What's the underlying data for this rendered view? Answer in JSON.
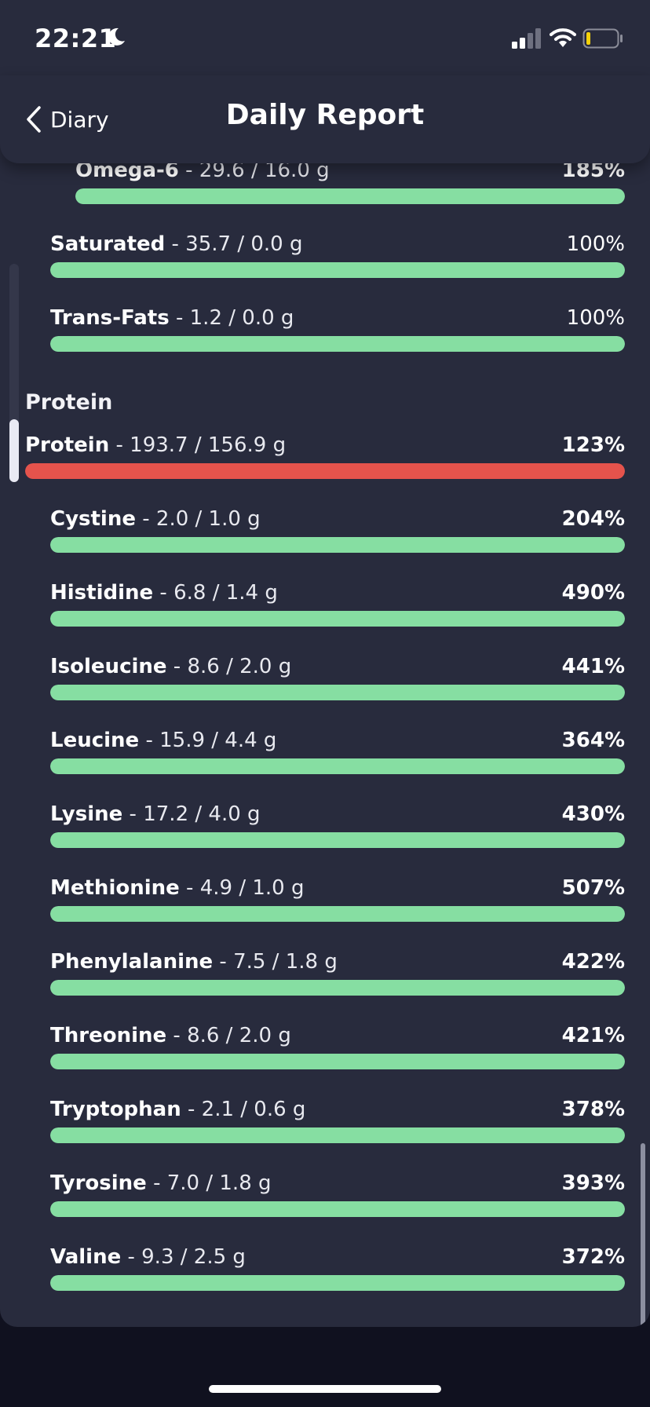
{
  "status_bar": {
    "time": "22:21"
  },
  "nav": {
    "back_label": "Diary",
    "title": "Daily Report"
  },
  "section": {
    "protein_heading": "Protein"
  },
  "rows": [
    {
      "name": "Omega-6",
      "amount": "29.6 / 16.0 g",
      "percent": "185%",
      "fill": 1.0,
      "status": "ok",
      "bold_percent": true
    },
    {
      "name": "Saturated",
      "amount": "35.7 / 0.0 g",
      "percent": "100%",
      "fill": 1.0,
      "status": "ok",
      "bold_percent": false
    },
    {
      "name": "Trans-Fats",
      "amount": "1.2 / 0.0 g",
      "percent": "100%",
      "fill": 1.0,
      "status": "ok",
      "bold_percent": false
    },
    {
      "name": "Protein",
      "amount": "193.7 / 156.9 g",
      "percent": "123%",
      "fill": 1.0,
      "status": "over",
      "bold_percent": true
    },
    {
      "name": "Cystine",
      "amount": "2.0 / 1.0 g",
      "percent": "204%",
      "fill": 1.0,
      "status": "ok",
      "bold_percent": true
    },
    {
      "name": "Histidine",
      "amount": "6.8 / 1.4 g",
      "percent": "490%",
      "fill": 1.0,
      "status": "ok",
      "bold_percent": true
    },
    {
      "name": "Isoleucine",
      "amount": "8.6 / 2.0 g",
      "percent": "441%",
      "fill": 1.0,
      "status": "ok",
      "bold_percent": true
    },
    {
      "name": "Leucine",
      "amount": "15.9 / 4.4 g",
      "percent": "364%",
      "fill": 1.0,
      "status": "ok",
      "bold_percent": true
    },
    {
      "name": "Lysine",
      "amount": "17.2 / 4.0 g",
      "percent": "430%",
      "fill": 1.0,
      "status": "ok",
      "bold_percent": true
    },
    {
      "name": "Methionine",
      "amount": "4.9 / 1.0 g",
      "percent": "507%",
      "fill": 1.0,
      "status": "ok",
      "bold_percent": true
    },
    {
      "name": "Phenylalanine",
      "amount": "7.5 / 1.8 g",
      "percent": "422%",
      "fill": 1.0,
      "status": "ok",
      "bold_percent": true
    },
    {
      "name": "Threonine",
      "amount": "8.6 / 2.0 g",
      "percent": "421%",
      "fill": 1.0,
      "status": "ok",
      "bold_percent": true
    },
    {
      "name": "Tryptophan",
      "amount": "2.1 / 0.6 g",
      "percent": "378%",
      "fill": 1.0,
      "status": "ok",
      "bold_percent": true
    },
    {
      "name": "Tyrosine",
      "amount": "7.0 / 1.8 g",
      "percent": "393%",
      "fill": 1.0,
      "status": "ok",
      "bold_percent": true
    },
    {
      "name": "Valine",
      "amount": "9.3 / 2.5 g",
      "percent": "372%",
      "fill": 1.0,
      "status": "ok",
      "bold_percent": true
    }
  ],
  "colors": {
    "ok": "#86dea2",
    "over": "#e5534c",
    "card": "#282b3d",
    "background": "#10111f"
  }
}
